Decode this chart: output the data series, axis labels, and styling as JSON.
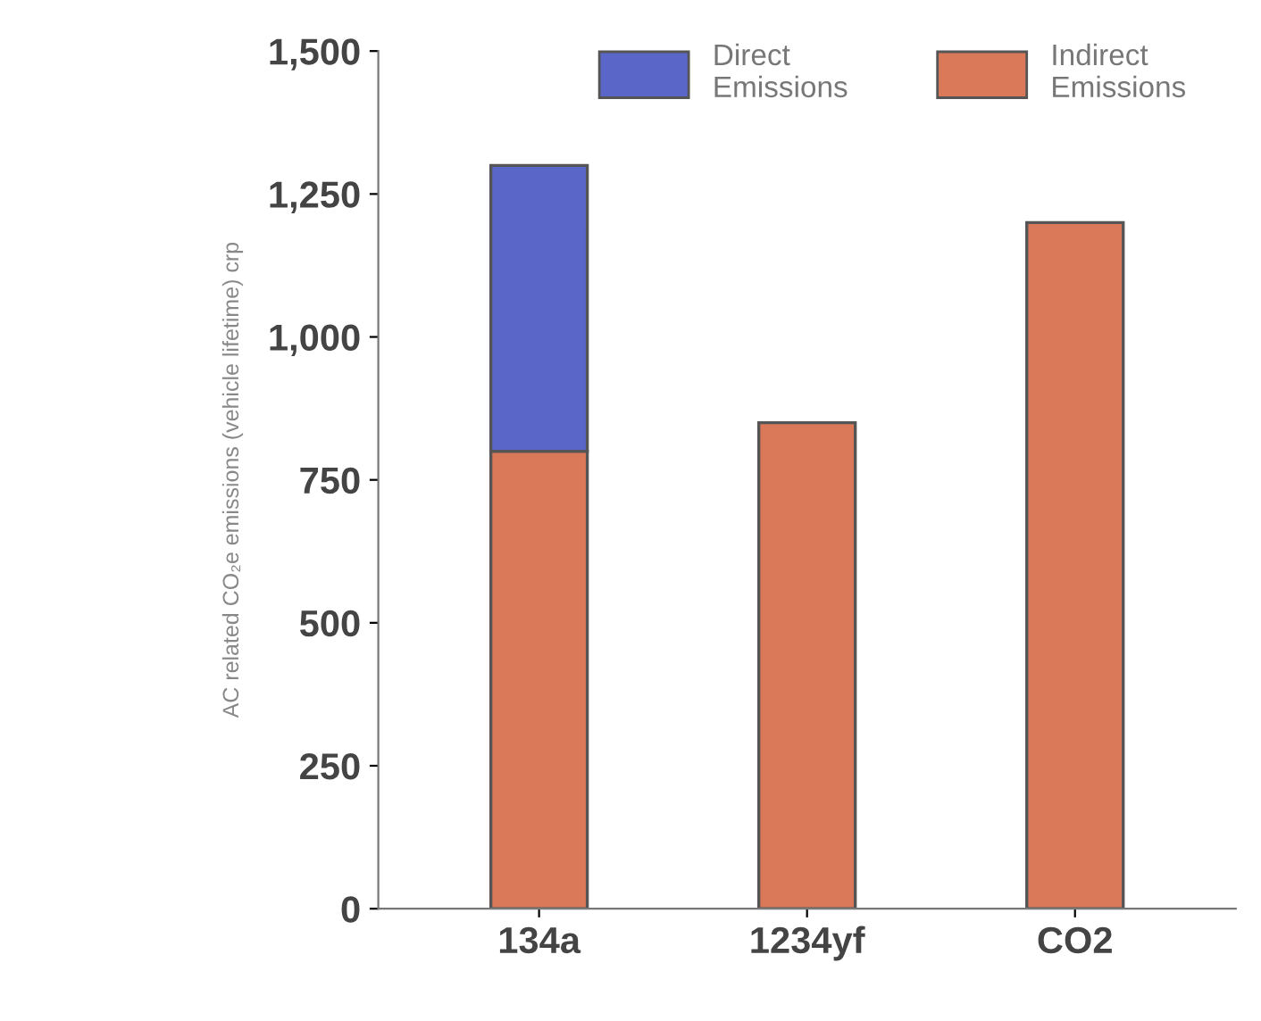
{
  "chart_data": {
    "type": "bar",
    "stacked": true,
    "ylabel": "AC related CO₂e emissions (vehicle lifetime) crp",
    "categories": [
      "134a",
      "1234yf",
      "CO2"
    ],
    "series": [
      {
        "name": "Indirect Emissions",
        "color": "#d9795a",
        "values": [
          800,
          850,
          1200
        ]
      },
      {
        "name": "Direct Emissions",
        "color": "#5a66c8",
        "values": [
          500,
          null,
          null
        ]
      }
    ],
    "ylim": [
      0,
      1500
    ],
    "yticks": [
      0,
      {
        "value": 250,
        "label": "250"
      },
      {
        "value": 500,
        "label": "500"
      },
      {
        "value": 750,
        "label": "750"
      },
      {
        "value": 1000,
        "label": "1,000"
      },
      {
        "value": 1250,
        "label": "1,250"
      },
      {
        "value": 1500,
        "label": "1,500"
      }
    ],
    "grid": false,
    "legend": "top"
  }
}
